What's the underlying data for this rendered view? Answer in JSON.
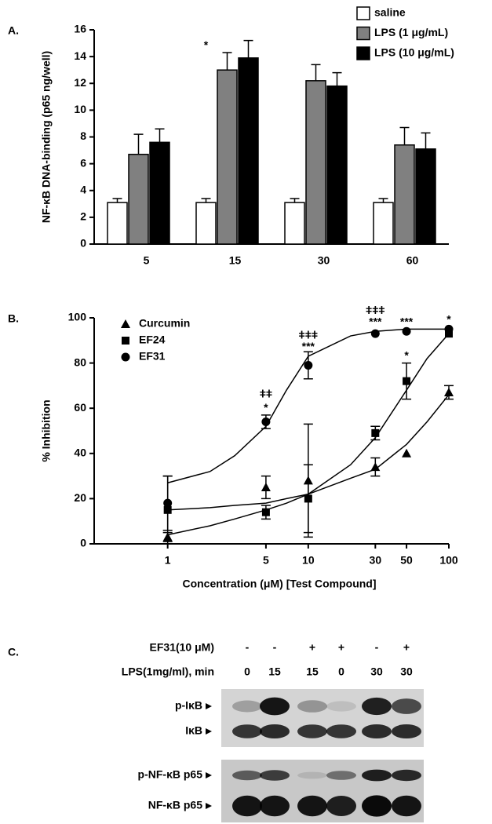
{
  "chart_data": [
    {
      "type": "bar",
      "panel_label": "A.",
      "ylabel": "NF-κB DNA-binding (p65 ng/well)",
      "categories": [
        "5",
        "15",
        "30",
        "60"
      ],
      "series": [
        {
          "name": "saline",
          "color": "#ffffff",
          "values": [
            3.1,
            3.1,
            3.1,
            3.1
          ],
          "errors": [
            0.3,
            0.3,
            0.3,
            0.3
          ]
        },
        {
          "name": "LPS (1 μg/mL)",
          "color": "#808080",
          "values": [
            6.7,
            13.0,
            12.2,
            7.4
          ],
          "errors": [
            1.5,
            1.3,
            1.2,
            1.3
          ]
        },
        {
          "name": "LPS (10 μg/mL)",
          "color": "#000000",
          "values": [
            7.6,
            13.9,
            11.8,
            7.1
          ],
          "errors": [
            1.0,
            1.3,
            1.0,
            1.2
          ]
        }
      ],
      "ylim": [
        0,
        16
      ],
      "yticks": [
        0,
        2,
        4,
        6,
        8,
        10,
        12,
        14,
        16
      ],
      "legend": "top-right",
      "annotations": [
        {
          "text": "*",
          "x": "15",
          "y": 14.8
        }
      ]
    },
    {
      "type": "scatter",
      "panel_label": "B.",
      "ylabel": "% Inhibition",
      "xlabel": "Concentration (μM) [Test Compound]",
      "xscale": "log",
      "xlim": [
        0.3,
        100
      ],
      "xticks": [
        1,
        5,
        10,
        30,
        50,
        100
      ],
      "ylim": [
        0,
        100
      ],
      "yticks": [
        0,
        20,
        40,
        60,
        80,
        100
      ],
      "legend": "top-left",
      "series": [
        {
          "name": "Curcumin",
          "marker": "triangle",
          "color": "#000000",
          "x": [
            1,
            5,
            10,
            30,
            50,
            100
          ],
          "values": [
            3,
            25,
            28,
            34,
            40,
            67
          ],
          "errors": [
            2,
            5,
            25,
            4,
            null,
            3
          ],
          "fit": {
            "x": [
              1,
              2,
              3,
              5,
              7,
              10,
              20,
              30,
              50,
              70,
              100
            ],
            "values": [
              4,
              8,
              11,
              15,
              18,
              22,
              29,
              33,
              44,
              54,
              66
            ]
          }
        },
        {
          "name": "EF24",
          "marker": "square",
          "color": "#000000",
          "x": [
            1,
            5,
            10,
            30,
            50,
            100
          ],
          "values": [
            15,
            14,
            20,
            49,
            72,
            93
          ],
          "errors": [
            15,
            3,
            15,
            3,
            8,
            null
          ],
          "fit": {
            "x": [
              1,
              2,
              3,
              5,
              7,
              10,
              20,
              30,
              50,
              70,
              100
            ],
            "values": [
              15,
              16,
              17,
              18,
              20,
              22,
              35,
              47,
              68,
              82,
              93
            ]
          }
        },
        {
          "name": "EF31",
          "marker": "circle",
          "color": "#000000",
          "x": [
            1,
            5,
            10,
            30,
            50,
            100
          ],
          "values": [
            18,
            54,
            79,
            93,
            94,
            95
          ],
          "errors": [
            12,
            3,
            6,
            null,
            null,
            null
          ],
          "fit": {
            "x": [
              1,
              2,
              3,
              5,
              7,
              10,
              20,
              30,
              50,
              70,
              100
            ],
            "values": [
              27,
              32,
              39,
              52,
              68,
              83,
              92,
              94,
              95,
              95,
              95
            ]
          }
        }
      ],
      "annotations": [
        {
          "text": "ǂǂ",
          "x": 5,
          "y": 66
        },
        {
          "text": "*",
          "x": 5,
          "y": 60
        },
        {
          "text": "ǂǂǂ",
          "x": 10,
          "y": 92
        },
        {
          "text": "***",
          "x": 10,
          "y": 87
        },
        {
          "text": "ǂǂǂ",
          "x": 30,
          "y": 103
        },
        {
          "text": "***",
          "x": 30,
          "y": 98
        },
        {
          "text": "***",
          "x": 50,
          "y": 98
        },
        {
          "text": "*",
          "x": 100,
          "y": 99
        },
        {
          "text": "*",
          "x": 50,
          "y": 83
        }
      ]
    }
  ],
  "blot": {
    "panel_label": "C.",
    "conditions": [
      {
        "label": "EF31(10 μM)",
        "lanes": [
          "-",
          "-",
          "+",
          "+",
          "-",
          "+"
        ]
      },
      {
        "label": "LPS(1mg/ml), min",
        "lanes": [
          "0",
          "15",
          "15",
          "0",
          "30",
          "30"
        ]
      }
    ],
    "bands": [
      "p-IκB",
      "IκB",
      "p-NF-κB p65",
      "NF-κB p65"
    ]
  }
}
